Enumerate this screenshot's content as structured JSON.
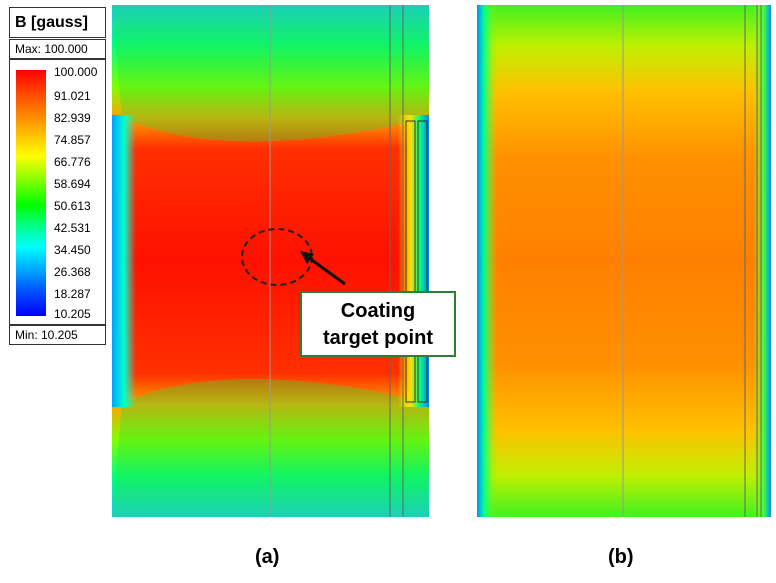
{
  "legend": {
    "title": "B [gauss]",
    "max_label": "Max: 100.000",
    "min_label": "Min:  10.205",
    "ticks": [
      "100.000",
      "91.021",
      "82.939",
      "74.857",
      "66.776",
      "58.694",
      "50.613",
      "42.531",
      "34.450",
      "26.368",
      "18.287",
      "10.205"
    ],
    "colors": {
      "high": "#ff0000",
      "mid": "#00ff00",
      "low": "#0000ff"
    }
  },
  "annotation": {
    "line1": "Coating",
    "line2": "target point"
  },
  "panels": {
    "a_label": "(a)",
    "b_label": "(b)"
  }
}
